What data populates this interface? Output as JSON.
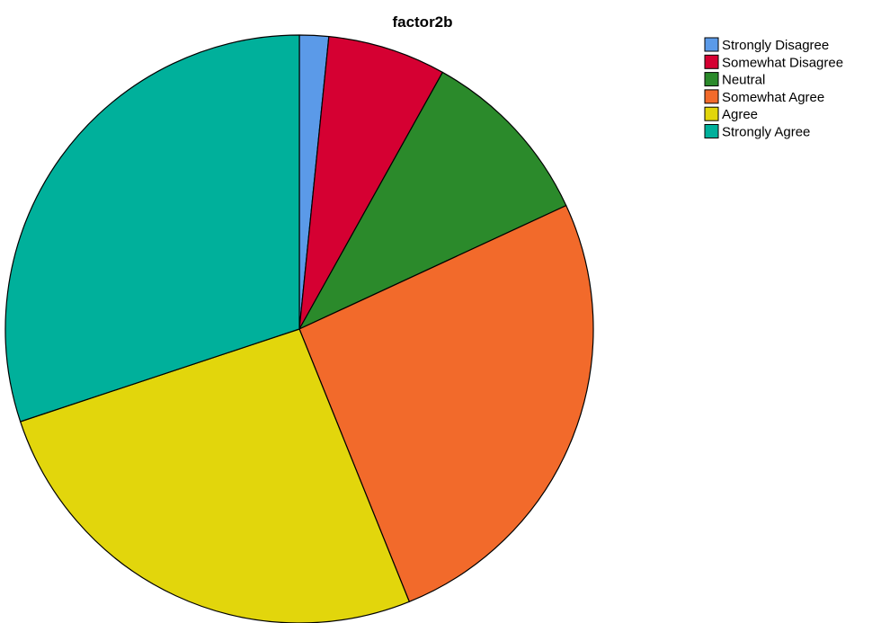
{
  "chart_data": {
    "type": "pie",
    "title": "factor2b",
    "start_angle_deg": 0,
    "direction": "clockwise",
    "legend_position": "top-right",
    "slices": [
      {
        "label": "Strongly Disagree",
        "value": 1.6,
        "color": "#5b9ae8"
      },
      {
        "label": "Somewhat Disagree",
        "value": 6.5,
        "color": "#d50032"
      },
      {
        "label": "Neutral",
        "value": 10.0,
        "color": "#2b8a2b"
      },
      {
        "label": "Somewhat Agree",
        "value": 25.8,
        "color": "#f26a2b"
      },
      {
        "label": "Agree",
        "value": 26.0,
        "color": "#e2d60c"
      },
      {
        "label": "Strongly Agree",
        "value": 30.1,
        "color": "#00b09b"
      }
    ]
  }
}
